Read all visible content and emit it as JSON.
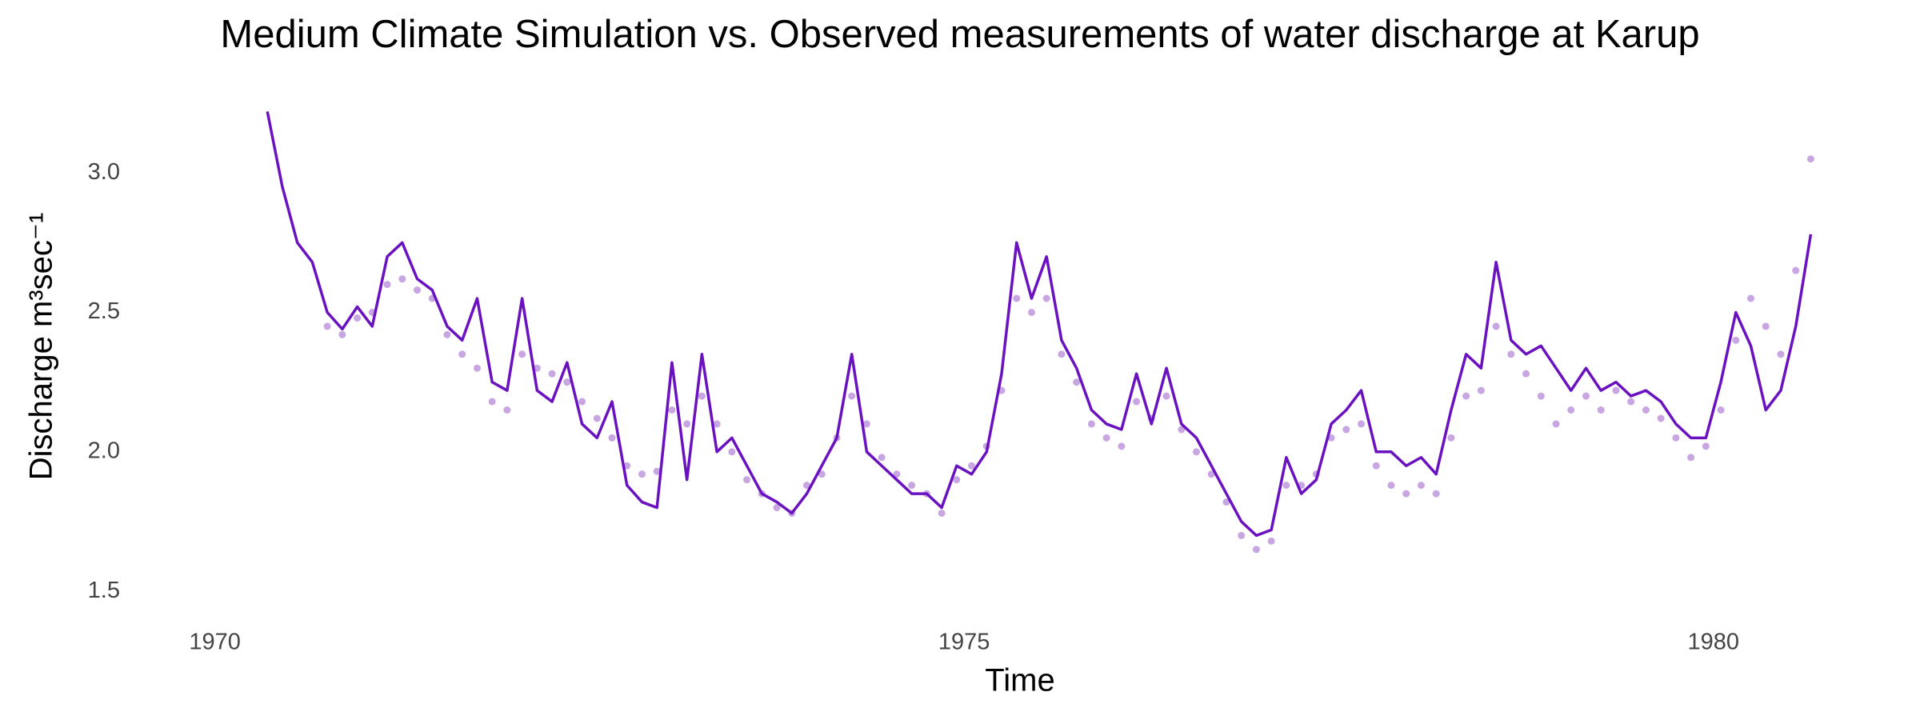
{
  "chart_data": {
    "type": "line",
    "title": "Medium Climate Simulation vs. Observed measurements of water discharge at Karup",
    "x_label": "Time",
    "y_label": "Discharge m³sec⁻¹",
    "xlim": [
      1969.5,
      1981.0
    ],
    "ylim": [
      1.42,
      3.25
    ],
    "xticks": [
      1970,
      1975,
      1980
    ],
    "yticks": [
      1.5,
      {
        "value": 2,
        "label": "2.0"
      },
      2.5,
      {
        "value": 3,
        "label": "3.0"
      }
    ],
    "grid": false,
    "x": [
      1970.35,
      1970.45,
      1970.55,
      1970.65,
      1970.75,
      1970.85,
      1970.95,
      1971.05,
      1971.15,
      1971.25,
      1971.35,
      1971.45,
      1971.55,
      1971.65,
      1971.75,
      1971.85,
      1971.95,
      1972.05,
      1972.15,
      1972.25,
      1972.35,
      1972.45,
      1972.55,
      1972.65,
      1972.75,
      1972.85,
      1972.95,
      1973.05,
      1973.15,
      1973.25,
      1973.35,
      1973.45,
      1973.55,
      1973.65,
      1973.75,
      1973.85,
      1973.95,
      1974.05,
      1974.15,
      1974.25,
      1974.35,
      1974.45,
      1974.55,
      1974.65,
      1974.75,
      1974.85,
      1974.95,
      1975.05,
      1975.15,
      1975.25,
      1975.35,
      1975.45,
      1975.55,
      1975.65,
      1975.75,
      1975.85,
      1975.95,
      1976.05,
      1976.15,
      1976.25,
      1976.35,
      1976.45,
      1976.55,
      1976.65,
      1976.75,
      1976.85,
      1976.95,
      1977.05,
      1977.15,
      1977.25,
      1977.35,
      1977.45,
      1977.55,
      1977.65,
      1977.75,
      1977.85,
      1977.95,
      1978.05,
      1978.15,
      1978.25,
      1978.35,
      1978.45,
      1978.55,
      1978.65,
      1978.75,
      1978.85,
      1978.95,
      1979.05,
      1979.15,
      1979.25,
      1979.35,
      1979.45,
      1979.55,
      1979.65,
      1979.75,
      1979.85,
      1979.95,
      1980.05,
      1980.15,
      1980.25,
      1980.35,
      1980.45,
      1980.55,
      1980.65
    ],
    "series": [
      {
        "style": "line",
        "color": "#6a12c0",
        "values": [
          3.22,
          2.95,
          2.75,
          2.68,
          2.5,
          2.44,
          2.52,
          2.45,
          2.7,
          2.75,
          2.62,
          2.58,
          2.45,
          2.4,
          2.55,
          2.25,
          2.22,
          2.55,
          2.22,
          2.18,
          2.32,
          2.1,
          2.05,
          2.18,
          1.88,
          1.82,
          1.8,
          2.32,
          1.9,
          2.35,
          2.0,
          2.05,
          1.95,
          1.85,
          1.82,
          1.78,
          1.85,
          1.95,
          2.05,
          2.35,
          2.0,
          1.95,
          1.9,
          1.85,
          1.85,
          1.8,
          1.95,
          1.92,
          2.0,
          2.28,
          2.75,
          2.55,
          2.7,
          2.4,
          2.3,
          2.15,
          2.1,
          2.08,
          2.28,
          2.1,
          2.3,
          2.1,
          2.05,
          1.95,
          1.85,
          1.75,
          1.7,
          1.72,
          1.98,
          1.85,
          1.9,
          2.1,
          2.15,
          2.22,
          2.0,
          2.0,
          1.95,
          1.98,
          1.92,
          2.15,
          2.35,
          2.3,
          2.68,
          2.4,
          2.35,
          2.38,
          2.3,
          2.22,
          2.3,
          2.22,
          2.25,
          2.2,
          2.22,
          2.18,
          2.1,
          2.05,
          2.05,
          2.25,
          2.5,
          2.38,
          2.15,
          2.22,
          2.45,
          2.78
        ]
      },
      {
        "style": "points",
        "color": "#c7a6e2",
        "values": [
          null,
          null,
          null,
          null,
          2.45,
          2.42,
          2.48,
          2.5,
          2.6,
          2.62,
          2.58,
          2.55,
          2.42,
          2.35,
          2.3,
          2.18,
          2.15,
          2.35,
          2.3,
          2.28,
          2.25,
          2.18,
          2.12,
          2.05,
          1.95,
          1.92,
          1.93,
          2.15,
          2.1,
          2.2,
          2.1,
          2.0,
          1.9,
          1.85,
          1.8,
          1.78,
          1.88,
          1.92,
          2.05,
          2.2,
          2.1,
          1.98,
          1.92,
          1.88,
          1.85,
          1.78,
          1.9,
          1.95,
          2.02,
          2.22,
          2.55,
          2.5,
          2.55,
          2.35,
          2.25,
          2.1,
          2.05,
          2.02,
          2.18,
          2.12,
          2.2,
          2.08,
          2.0,
          1.92,
          1.82,
          1.7,
          1.65,
          1.68,
          1.88,
          1.88,
          1.92,
          2.05,
          2.08,
          2.1,
          1.95,
          1.88,
          1.85,
          1.88,
          1.85,
          2.05,
          2.2,
          2.22,
          2.45,
          2.35,
          2.28,
          2.2,
          2.1,
          2.15,
          2.2,
          2.15,
          2.22,
          2.18,
          2.15,
          2.12,
          2.05,
          1.98,
          2.02,
          2.15,
          2.4,
          2.55,
          2.45,
          2.35,
          2.65,
          3.05
        ]
      }
    ]
  }
}
